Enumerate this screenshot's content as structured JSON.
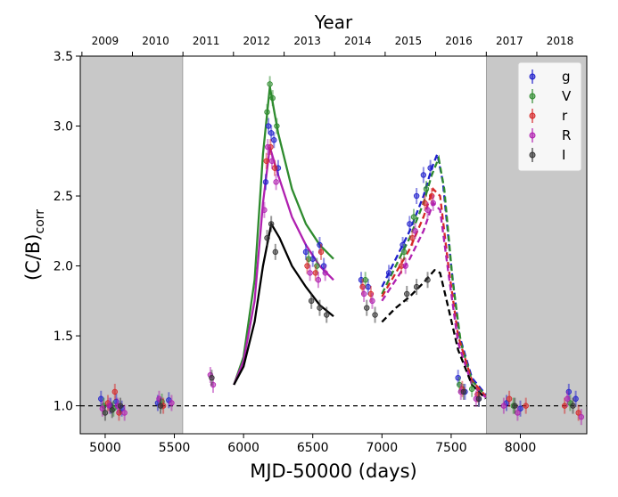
{
  "chart_data": {
    "type": "scatter",
    "title": "Year",
    "xlabel": "MJD-50000 (days)",
    "ylabel_main": "(C/B)",
    "ylabel_sub": "corr",
    "xlim": [
      4820,
      8480
    ],
    "ylim": [
      0.8,
      3.5
    ],
    "x_ticks": [
      5000,
      5500,
      6000,
      6500,
      7000,
      7500,
      8000
    ],
    "y_ticks": [
      1.0,
      1.5,
      2.0,
      2.5,
      3.0,
      3.5
    ],
    "x_tick_labels": [
      "5000",
      "5500",
      "6000",
      "6500",
      "7000",
      "7500",
      "8000"
    ],
    "y_tick_labels": [
      "1.0",
      "1.5",
      "2.0",
      "2.5",
      "3.0",
      "3.5"
    ],
    "top_axis": {
      "labels": [
        "2009",
        "2010",
        "2011",
        "2012",
        "2013",
        "2014",
        "2015",
        "2016",
        "2017",
        "2018"
      ],
      "positions": [
        4832,
        5197,
        5562,
        5927,
        6293,
        6658,
        7023,
        7388,
        7754,
        8119
      ]
    },
    "shaded_regions": [
      [
        4820,
        5560
      ],
      [
        7755,
        8480
      ]
    ],
    "reference_line": 1.0,
    "legend_position": "top-right",
    "series": [
      {
        "name": "g",
        "color": "#1f1fcc",
        "points": [
          [
            4970,
            1.05
          ],
          [
            5040,
            1.0
          ],
          [
            5080,
            1.03
          ],
          [
            5120,
            0.98
          ],
          [
            5380,
            1.02
          ],
          [
            5460,
            1.04
          ],
          [
            6160,
            2.6
          ],
          [
            6180,
            3.0
          ],
          [
            6200,
            2.95
          ],
          [
            6220,
            2.9
          ],
          [
            6250,
            2.7
          ],
          [
            6450,
            2.1
          ],
          [
            6500,
            2.05
          ],
          [
            6550,
            2.15
          ],
          [
            6580,
            2.0
          ],
          [
            6850,
            1.9
          ],
          [
            6900,
            1.85
          ],
          [
            7050,
            1.95
          ],
          [
            7150,
            2.15
          ],
          [
            7200,
            2.3
          ],
          [
            7250,
            2.5
          ],
          [
            7300,
            2.65
          ],
          [
            7350,
            2.7
          ],
          [
            7550,
            1.2
          ],
          [
            7600,
            1.1
          ],
          [
            7700,
            1.05
          ],
          [
            7900,
            1.02
          ],
          [
            8000,
            0.98
          ],
          [
            8350,
            1.1
          ],
          [
            8400,
            1.05
          ]
        ]
      },
      {
        "name": "V",
        "color": "#2e8b2e",
        "points": [
          [
            4990,
            1.0
          ],
          [
            5060,
            0.98
          ],
          [
            5410,
            1.03
          ],
          [
            6170,
            3.1
          ],
          [
            6190,
            3.3
          ],
          [
            6210,
            3.2
          ],
          [
            6240,
            3.0
          ],
          [
            6470,
            2.05
          ],
          [
            6530,
            2.0
          ],
          [
            6880,
            1.9
          ],
          [
            7160,
            2.1
          ],
          [
            7230,
            2.35
          ],
          [
            7320,
            2.55
          ],
          [
            7560,
            1.15
          ],
          [
            7650,
            1.12
          ],
          [
            7950,
            1.0
          ],
          [
            8360,
            1.02
          ]
        ]
      },
      {
        "name": "r",
        "color": "#d62728",
        "points": [
          [
            5020,
            1.02
          ],
          [
            5070,
            1.1
          ],
          [
            5100,
            0.95
          ],
          [
            5420,
            1.0
          ],
          [
            6165,
            2.75
          ],
          [
            6195,
            2.85
          ],
          [
            6225,
            2.7
          ],
          [
            6460,
            2.0
          ],
          [
            6520,
            1.95
          ],
          [
            6560,
            2.1
          ],
          [
            6860,
            1.85
          ],
          [
            6920,
            1.8
          ],
          [
            7140,
            2.0
          ],
          [
            7220,
            2.2
          ],
          [
            7310,
            2.45
          ],
          [
            7360,
            2.5
          ],
          [
            7580,
            1.12
          ],
          [
            7690,
            1.08
          ],
          [
            7920,
            1.05
          ],
          [
            8040,
            1.0
          ],
          [
            8320,
            1.0
          ],
          [
            8420,
            0.95
          ]
        ]
      },
      {
        "name": "R",
        "color": "#b020b0",
        "points": [
          [
            4980,
            0.98
          ],
          [
            5030,
            1.0
          ],
          [
            5090,
            1.0
          ],
          [
            5140,
            0.95
          ],
          [
            5390,
            1.05
          ],
          [
            5480,
            1.02
          ],
          [
            5760,
            1.22
          ],
          [
            5780,
            1.15
          ],
          [
            6150,
            2.4
          ],
          [
            6175,
            2.85
          ],
          [
            6205,
            2.75
          ],
          [
            6235,
            2.6
          ],
          [
            6480,
            1.95
          ],
          [
            6540,
            1.9
          ],
          [
            6590,
            1.95
          ],
          [
            6870,
            1.8
          ],
          [
            6930,
            1.75
          ],
          [
            7170,
            2.0
          ],
          [
            7240,
            2.25
          ],
          [
            7330,
            2.4
          ],
          [
            7370,
            2.45
          ],
          [
            7570,
            1.1
          ],
          [
            7680,
            1.05
          ],
          [
            7880,
            1.0
          ],
          [
            7980,
            0.95
          ],
          [
            8340,
            1.05
          ],
          [
            8440,
            0.92
          ]
        ]
      },
      {
        "name": "I",
        "color": "#333333",
        "points": [
          [
            5000,
            0.95
          ],
          [
            5050,
            0.97
          ],
          [
            5110,
            1.0
          ],
          [
            5400,
            1.0
          ],
          [
            5770,
            1.2
          ],
          [
            6170,
            2.2
          ],
          [
            6200,
            2.3
          ],
          [
            6230,
            2.1
          ],
          [
            6490,
            1.75
          ],
          [
            6550,
            1.7
          ],
          [
            6600,
            1.65
          ],
          [
            6890,
            1.7
          ],
          [
            6950,
            1.65
          ],
          [
            7180,
            1.8
          ],
          [
            7250,
            1.85
          ],
          [
            7330,
            1.9
          ],
          [
            7590,
            1.1
          ],
          [
            7700,
            1.05
          ],
          [
            7960,
            1.0
          ],
          [
            8380,
            1.0
          ]
        ]
      }
    ],
    "model_curves": [
      {
        "color": "#2e8b2e",
        "style": "solid",
        "points": [
          [
            5930,
            1.15
          ],
          [
            6000,
            1.35
          ],
          [
            6080,
            1.9
          ],
          [
            6140,
            2.8
          ],
          [
            6190,
            3.28
          ],
          [
            6250,
            2.95
          ],
          [
            6350,
            2.55
          ],
          [
            6450,
            2.3
          ],
          [
            6550,
            2.15
          ],
          [
            6650,
            2.05
          ]
        ]
      },
      {
        "color": "#b020b0",
        "style": "solid",
        "points": [
          [
            5930,
            1.15
          ],
          [
            6000,
            1.32
          ],
          [
            6080,
            1.75
          ],
          [
            6140,
            2.45
          ],
          [
            6190,
            2.85
          ],
          [
            6250,
            2.65
          ],
          [
            6350,
            2.35
          ],
          [
            6450,
            2.15
          ],
          [
            6550,
            2.0
          ],
          [
            6650,
            1.9
          ]
        ]
      },
      {
        "color": "#000000",
        "style": "solid",
        "points": [
          [
            5930,
            1.15
          ],
          [
            6000,
            1.28
          ],
          [
            6080,
            1.6
          ],
          [
            6140,
            2.0
          ],
          [
            6200,
            2.3
          ],
          [
            6260,
            2.2
          ],
          [
            6350,
            2.0
          ],
          [
            6450,
            1.85
          ],
          [
            6550,
            1.72
          ],
          [
            6650,
            1.64
          ]
        ]
      },
      {
        "color": "#1f1fcc",
        "style": "dashed",
        "points": [
          [
            7000,
            1.85
          ],
          [
            7100,
            2.05
          ],
          [
            7200,
            2.25
          ],
          [
            7300,
            2.5
          ],
          [
            7360,
            2.7
          ],
          [
            7400,
            2.8
          ],
          [
            7440,
            2.6
          ],
          [
            7500,
            2.0
          ],
          [
            7560,
            1.5
          ],
          [
            7650,
            1.2
          ],
          [
            7750,
            1.08
          ]
        ]
      },
      {
        "color": "#2e8b2e",
        "style": "dashed",
        "points": [
          [
            7000,
            1.8
          ],
          [
            7100,
            2.0
          ],
          [
            7200,
            2.2
          ],
          [
            7300,
            2.45
          ],
          [
            7360,
            2.65
          ],
          [
            7410,
            2.77
          ],
          [
            7450,
            2.55
          ],
          [
            7510,
            1.9
          ],
          [
            7570,
            1.45
          ],
          [
            7650,
            1.18
          ],
          [
            7750,
            1.07
          ]
        ]
      },
      {
        "color": "#d62728",
        "style": "dashed",
        "points": [
          [
            7000,
            1.78
          ],
          [
            7100,
            1.95
          ],
          [
            7200,
            2.12
          ],
          [
            7300,
            2.35
          ],
          [
            7370,
            2.55
          ],
          [
            7420,
            2.5
          ],
          [
            7480,
            2.0
          ],
          [
            7550,
            1.5
          ],
          [
            7650,
            1.18
          ],
          [
            7750,
            1.07
          ]
        ]
      },
      {
        "color": "#b020b0",
        "style": "dashed",
        "points": [
          [
            7000,
            1.75
          ],
          [
            7100,
            1.9
          ],
          [
            7200,
            2.05
          ],
          [
            7300,
            2.25
          ],
          [
            7370,
            2.45
          ],
          [
            7420,
            2.4
          ],
          [
            7480,
            1.95
          ],
          [
            7550,
            1.45
          ],
          [
            7650,
            1.15
          ],
          [
            7750,
            1.06
          ]
        ]
      },
      {
        "color": "#000000",
        "style": "dashed",
        "points": [
          [
            7000,
            1.6
          ],
          [
            7100,
            1.7
          ],
          [
            7200,
            1.78
          ],
          [
            7300,
            1.88
          ],
          [
            7380,
            1.97
          ],
          [
            7420,
            1.95
          ],
          [
            7480,
            1.7
          ],
          [
            7550,
            1.4
          ],
          [
            7650,
            1.15
          ],
          [
            7750,
            1.05
          ]
        ]
      }
    ]
  }
}
